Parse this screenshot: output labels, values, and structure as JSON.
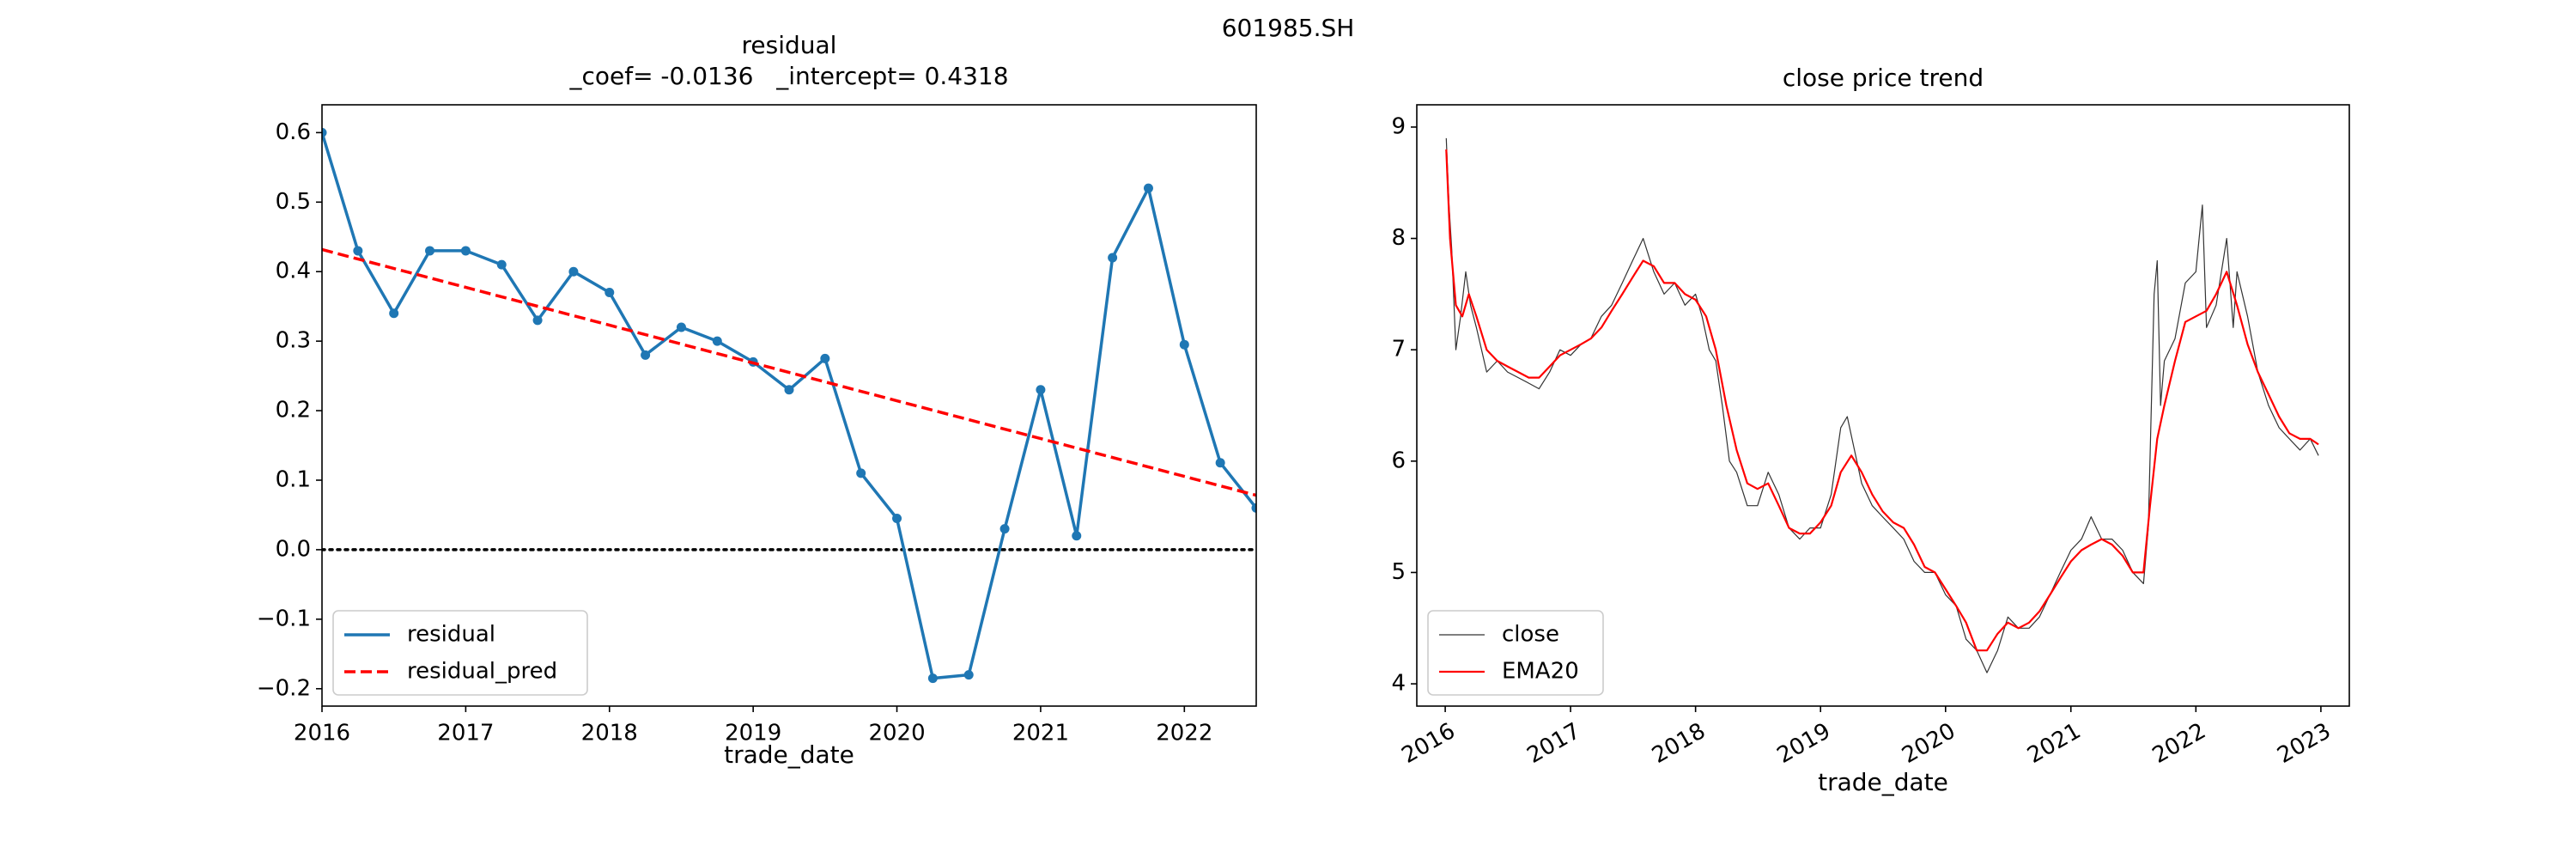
{
  "figure": {
    "suptitle": "601985.SH"
  },
  "chart_data": [
    {
      "type": "line",
      "title": "residual",
      "subtitle": "_coef= -0.0136   _intercept= 0.4318",
      "xlabel": "trade_date",
      "ylabel": "",
      "xlim": [
        2016.0,
        2022.5
      ],
      "ylim": [
        -0.225,
        0.64
      ],
      "x_ticks": [
        2016,
        2017,
        2018,
        2019,
        2020,
        2021,
        2022
      ],
      "x_tick_labels": [
        "2016",
        "2017",
        "2018",
        "2019",
        "2020",
        "2021",
        "2022"
      ],
      "y_ticks": [
        -0.2,
        -0.1,
        0.0,
        0.1,
        0.2,
        0.3,
        0.4,
        0.5,
        0.6
      ],
      "y_tick_labels": [
        "−0.2",
        "−0.1",
        "0.0",
        "0.1",
        "0.2",
        "0.3",
        "0.4",
        "0.5",
        "0.6"
      ],
      "legend_position": "lower-left",
      "series": [
        {
          "name": "residual",
          "color": "#1f77b4",
          "style": "solid-markers",
          "x": [
            2016.0,
            2016.25,
            2016.5,
            2016.75,
            2017.0,
            2017.25,
            2017.5,
            2017.75,
            2018.0,
            2018.25,
            2018.5,
            2018.75,
            2019.0,
            2019.25,
            2019.5,
            2019.75,
            2020.0,
            2020.25,
            2020.5,
            2020.75,
            2021.0,
            2021.25,
            2021.5,
            2021.75,
            2022.0,
            2022.25,
            2022.5
          ],
          "y": [
            0.6,
            0.43,
            0.34,
            0.43,
            0.43,
            0.41,
            0.33,
            0.4,
            0.37,
            0.28,
            0.32,
            0.3,
            0.27,
            0.23,
            0.275,
            0.11,
            0.045,
            -0.185,
            -0.18,
            0.03,
            0.23,
            0.02,
            0.42,
            0.52,
            0.295,
            0.125,
            0.06
          ]
        },
        {
          "name": "residual_pred",
          "color": "#ff0000",
          "style": "dashed",
          "x": [
            2016.0,
            2022.5
          ],
          "y": [
            0.4318,
            0.0782
          ]
        }
      ],
      "reference_lines": [
        {
          "y": 0.0,
          "color": "#000000",
          "style": "dotted"
        }
      ]
    },
    {
      "type": "line",
      "title": "close price trend",
      "xlabel": "trade_date",
      "ylabel": "",
      "xlim": [
        "2015-10-10",
        "2023-03-25"
      ],
      "ylim": [
        3.8,
        9.2
      ],
      "x_ticks": [
        "2016-01-01",
        "2017-01-01",
        "2018-01-01",
        "2019-01-01",
        "2020-01-01",
        "2021-01-01",
        "2022-01-01",
        "2023-01-01"
      ],
      "x_tick_labels": [
        "2016",
        "2017",
        "2018",
        "2019",
        "2020",
        "2021",
        "2022",
        "2023"
      ],
      "y_ticks": [
        4,
        5,
        6,
        7,
        8,
        9
      ],
      "y_tick_labels": [
        "4",
        "5",
        "6",
        "7",
        "8",
        "9"
      ],
      "legend_position": "lower-left",
      "series": [
        {
          "name": "close",
          "color": "#333333",
          "x": [
            "2016-01-04",
            "2016-01-12",
            "2016-01-20",
            "2016-02-01",
            "2016-02-15",
            "2016-03-01",
            "2016-03-15",
            "2016-04-01",
            "2016-05-01",
            "2016-06-01",
            "2016-07-01",
            "2016-08-01",
            "2016-09-01",
            "2016-10-01",
            "2016-11-01",
            "2016-12-01",
            "2017-01-01",
            "2017-02-01",
            "2017-03-01",
            "2017-04-01",
            "2017-05-01",
            "2017-06-01",
            "2017-07-01",
            "2017-08-01",
            "2017-09-01",
            "2017-10-01",
            "2017-11-01",
            "2017-12-01",
            "2018-01-01",
            "2018-01-20",
            "2018-02-10",
            "2018-03-01",
            "2018-03-20",
            "2018-04-10",
            "2018-05-01",
            "2018-06-01",
            "2018-07-01",
            "2018-08-01",
            "2018-09-01",
            "2018-10-01",
            "2018-11-01",
            "2018-12-01",
            "2019-01-01",
            "2019-02-01",
            "2019-03-01",
            "2019-03-20",
            "2019-04-10",
            "2019-05-01",
            "2019-06-01",
            "2019-07-01",
            "2019-08-01",
            "2019-09-01",
            "2019-10-01",
            "2019-11-01",
            "2019-12-01",
            "2020-01-01",
            "2020-02-01",
            "2020-03-01",
            "2020-04-01",
            "2020-05-01",
            "2020-06-01",
            "2020-07-01",
            "2020-08-01",
            "2020-09-01",
            "2020-10-01",
            "2020-11-01",
            "2020-12-01",
            "2021-01-01",
            "2021-02-01",
            "2021-03-01",
            "2021-04-01",
            "2021-05-01",
            "2021-06-01",
            "2021-07-01",
            "2021-08-01",
            "2021-08-15",
            "2021-09-01",
            "2021-09-10",
            "2021-09-20",
            "2021-10-01",
            "2021-11-01",
            "2021-12-01",
            "2022-01-01",
            "2022-01-20",
            "2022-02-01",
            "2022-03-01",
            "2022-04-01",
            "2022-04-20",
            "2022-05-01",
            "2022-06-01",
            "2022-07-01",
            "2022-08-01",
            "2022-09-01",
            "2022-10-01",
            "2022-11-01",
            "2022-12-01",
            "2022-12-25"
          ],
          "y": [
            8.9,
            8.3,
            7.9,
            7.0,
            7.3,
            7.7,
            7.4,
            7.2,
            6.8,
            6.9,
            6.8,
            6.75,
            6.7,
            6.65,
            6.8,
            7.0,
            6.95,
            7.05,
            7.1,
            7.3,
            7.4,
            7.6,
            7.8,
            8.0,
            7.7,
            7.5,
            7.6,
            7.4,
            7.5,
            7.3,
            7.0,
            6.9,
            6.5,
            6.0,
            5.9,
            5.6,
            5.6,
            5.9,
            5.7,
            5.4,
            5.3,
            5.4,
            5.4,
            5.7,
            6.3,
            6.4,
            6.1,
            5.8,
            5.6,
            5.5,
            5.4,
            5.3,
            5.1,
            5.0,
            5.0,
            4.8,
            4.7,
            4.4,
            4.3,
            4.1,
            4.3,
            4.6,
            4.5,
            4.5,
            4.6,
            4.8,
            5.0,
            5.2,
            5.3,
            5.5,
            5.3,
            5.3,
            5.2,
            5.0,
            4.9,
            5.4,
            7.5,
            7.8,
            6.5,
            6.9,
            7.1,
            7.6,
            7.7,
            8.3,
            7.2,
            7.4,
            8.0,
            7.2,
            7.7,
            7.3,
            6.8,
            6.5,
            6.3,
            6.2,
            6.1,
            6.2,
            6.05
          ]
        },
        {
          "name": "EMA20",
          "color": "#ff0000",
          "x": [
            "2016-01-04",
            "2016-01-15",
            "2016-02-01",
            "2016-02-20",
            "2016-03-10",
            "2016-04-01",
            "2016-05-01",
            "2016-06-01",
            "2016-07-01",
            "2016-08-01",
            "2016-09-01",
            "2016-10-01",
            "2016-11-01",
            "2016-12-01",
            "2017-01-01",
            "2017-02-01",
            "2017-03-01",
            "2017-04-01",
            "2017-05-01",
            "2017-06-01",
            "2017-07-01",
            "2017-08-01",
            "2017-09-01",
            "2017-10-01",
            "2017-11-01",
            "2017-12-01",
            "2018-01-01",
            "2018-02-01",
            "2018-03-01",
            "2018-04-01",
            "2018-05-01",
            "2018-06-01",
            "2018-07-01",
            "2018-08-01",
            "2018-09-01",
            "2018-10-01",
            "2018-11-01",
            "2018-12-01",
            "2019-01-01",
            "2019-02-01",
            "2019-03-01",
            "2019-04-01",
            "2019-05-01",
            "2019-06-01",
            "2019-07-01",
            "2019-08-01",
            "2019-09-01",
            "2019-10-01",
            "2019-11-01",
            "2019-12-01",
            "2020-01-01",
            "2020-02-01",
            "2020-03-01",
            "2020-04-01",
            "2020-05-01",
            "2020-06-01",
            "2020-07-01",
            "2020-08-01",
            "2020-09-01",
            "2020-10-01",
            "2020-11-01",
            "2020-12-01",
            "2021-01-01",
            "2021-02-01",
            "2021-03-01",
            "2021-04-01",
            "2021-05-01",
            "2021-06-01",
            "2021-07-01",
            "2021-08-01",
            "2021-08-20",
            "2021-09-10",
            "2021-10-01",
            "2021-11-01",
            "2021-12-01",
            "2022-01-01",
            "2022-02-01",
            "2022-03-01",
            "2022-04-01",
            "2022-05-01",
            "2022-06-01",
            "2022-07-01",
            "2022-08-01",
            "2022-09-01",
            "2022-10-01",
            "2022-11-01",
            "2022-12-01",
            "2022-12-25"
          ],
          "y": [
            8.8,
            8.0,
            7.4,
            7.3,
            7.5,
            7.3,
            7.0,
            6.9,
            6.85,
            6.8,
            6.75,
            6.75,
            6.85,
            6.95,
            7.0,
            7.05,
            7.1,
            7.2,
            7.35,
            7.5,
            7.65,
            7.8,
            7.75,
            7.6,
            7.6,
            7.5,
            7.45,
            7.3,
            7.0,
            6.5,
            6.1,
            5.8,
            5.75,
            5.8,
            5.6,
            5.4,
            5.35,
            5.35,
            5.45,
            5.6,
            5.9,
            6.05,
            5.9,
            5.7,
            5.55,
            5.45,
            5.4,
            5.25,
            5.05,
            5.0,
            4.85,
            4.7,
            4.55,
            4.3,
            4.3,
            4.45,
            4.55,
            4.5,
            4.55,
            4.65,
            4.8,
            4.95,
            5.1,
            5.2,
            5.25,
            5.3,
            5.25,
            5.15,
            5.0,
            5.0,
            5.6,
            6.2,
            6.5,
            6.9,
            7.25,
            7.3,
            7.35,
            7.5,
            7.7,
            7.4,
            7.05,
            6.8,
            6.6,
            6.4,
            6.25,
            6.2,
            6.2,
            6.15
          ]
        }
      ]
    }
  ]
}
